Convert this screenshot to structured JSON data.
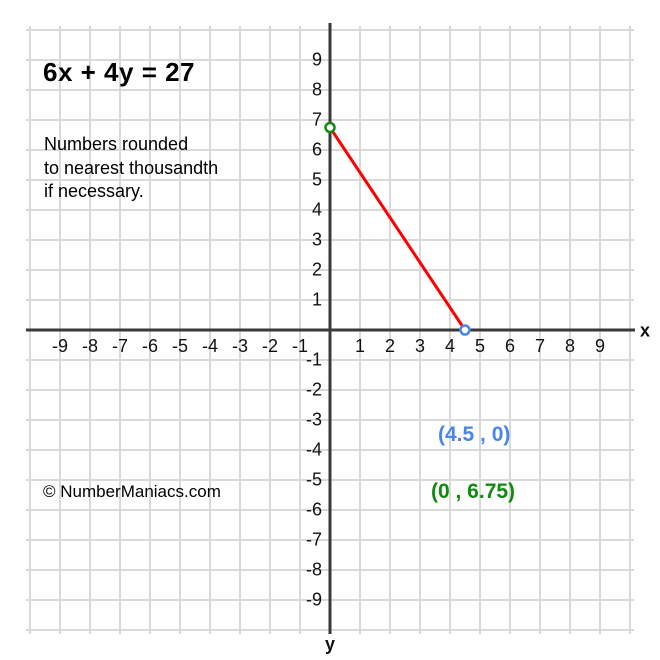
{
  "page": {
    "title": "6x + 4y = 27"
  },
  "note_lines": [
    "Numbers rounded",
    "to nearest thousandth",
    "if necessary."
  ],
  "copyright": "© NumberManiacs.com",
  "axis_labels": {
    "x": "x",
    "y": "y"
  },
  "point_labels": {
    "x_intercept": "(4.5 , 0)",
    "y_intercept": "(0 , 6.75)"
  },
  "colors": {
    "line": "#fe0000",
    "x_intercept_marker": "#4a86e8",
    "y_intercept_marker": "#128a12",
    "x_intercept_label": "#4a86e8",
    "y_intercept_label": "#128a12",
    "grid": "#d9d9d9",
    "axis": "#3a3a3a",
    "marker_fill": "#ffffff"
  },
  "chart_data": {
    "type": "line",
    "title": "6x + 4y = 27",
    "equation": "6x + 4y = 27",
    "note": "Numbers rounded to nearest thousandth if necessary.",
    "points": [
      {
        "x": 0,
        "y": 6.75,
        "label": "(0 , 6.75)",
        "role": "y-intercept",
        "marker_color": "#128a12"
      },
      {
        "x": 4.5,
        "y": 0,
        "label": "(4.5 , 0)",
        "role": "x-intercept",
        "marker_color": "#4a86e8"
      }
    ],
    "line_color": "#fe0000",
    "xlabel": "x",
    "ylabel": "y",
    "xlim": [
      -11,
      11
    ],
    "ylim": [
      -11,
      11
    ],
    "xticks": [
      -9,
      -8,
      -7,
      -6,
      -5,
      -4,
      -3,
      -2,
      -1,
      1,
      2,
      3,
      4,
      5,
      6,
      7,
      8,
      9
    ],
    "yticks": [
      9,
      8,
      7,
      6,
      5,
      4,
      3,
      2,
      1,
      -1,
      -2,
      -3,
      -4,
      -5,
      -6,
      -7,
      -8,
      -9
    ],
    "grid": true,
    "grid_step": 1
  }
}
